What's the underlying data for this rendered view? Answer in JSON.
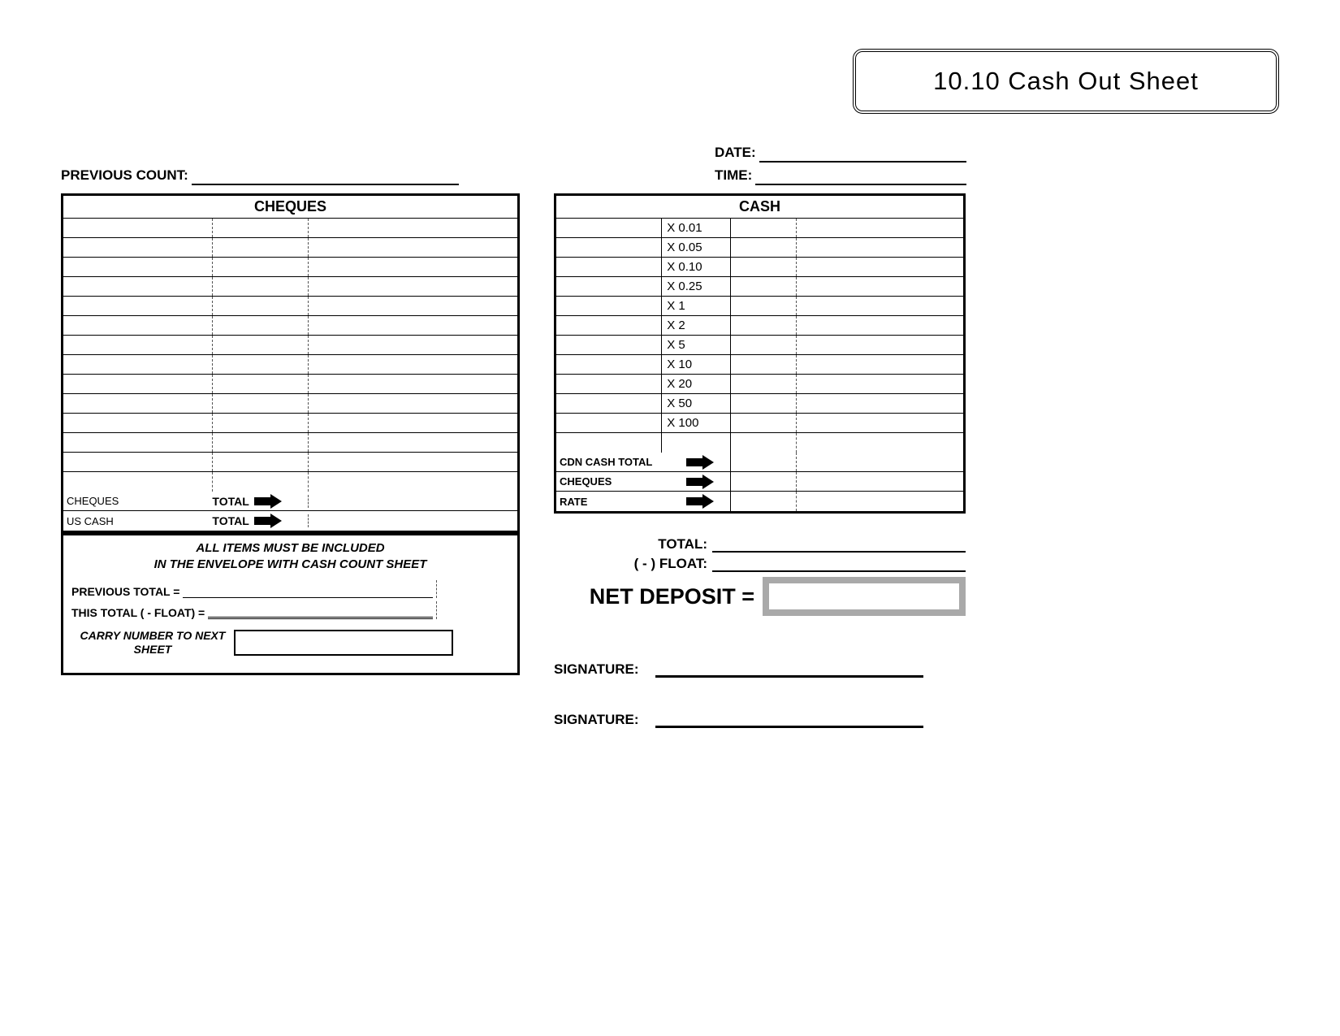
{
  "header": {
    "title": "10.10   Cash Out Sheet",
    "date_label": "DATE:",
    "time_label": "TIME:",
    "previous_count_label": "PREVIOUS COUNT:"
  },
  "cheques": {
    "header": "CHEQUES",
    "blank_rows": 14,
    "totals": [
      {
        "label": "CHEQUES",
        "mid": "TOTAL"
      },
      {
        "label": "US CASH",
        "mid": "TOTAL"
      }
    ]
  },
  "notes": {
    "line1": "ALL ITEMS MUST BE INCLUDED",
    "line2": "IN THE ENVELOPE WITH CASH COUNT SHEET",
    "prev_total": "PREVIOUS TOTAL =",
    "this_total": "THIS TOTAL ( - FLOAT) =",
    "carry": "CARRY NUMBER TO NEXT SHEET"
  },
  "cash": {
    "header": "CASH",
    "denoms": [
      "X 0.01",
      "X 0.05",
      "X 0.10",
      "X 0.25",
      "X 1",
      "X 2",
      "X 5",
      "X 10",
      "X 20",
      "X 50",
      "X 100"
    ],
    "blank_after": 1,
    "totals": [
      {
        "label": "CDN CASH TOTAL"
      },
      {
        "label": "CHEQUES"
      },
      {
        "label": "RATE"
      }
    ]
  },
  "summary": {
    "total_label": "TOTAL:",
    "float_label": "( - ) FLOAT:",
    "net_label": "NET DEPOSIT ="
  },
  "signatures": {
    "label": "SIGNATURE:"
  },
  "colors": {
    "black": "#000000",
    "grey_border": "#a9a9a9",
    "background": "#ffffff"
  }
}
